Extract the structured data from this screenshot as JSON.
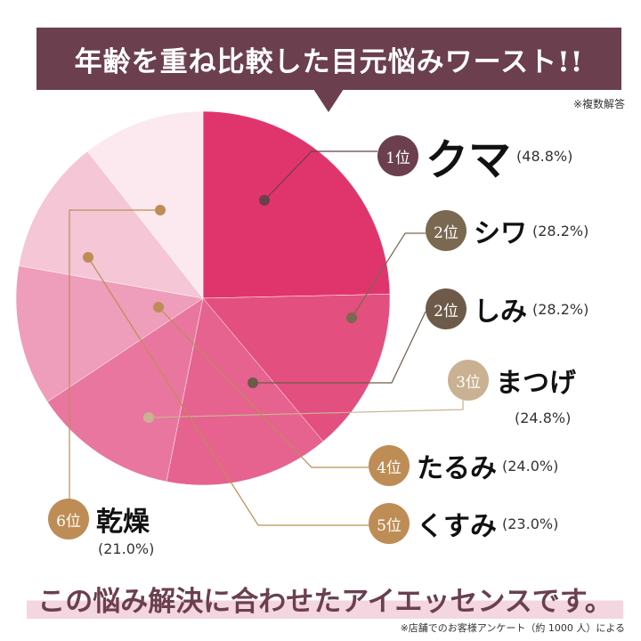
{
  "title": "年齢を重ね比較した目元悩みワースト!!",
  "note": "※複数解答",
  "chart_data": {
    "type": "pie",
    "title": "年齢を重ね比較した目元悩みワースト!!",
    "items": [
      {
        "rank": "1位",
        "name": "クマ",
        "value": 48.8,
        "label": "(48.8%)",
        "color": "#e0356c"
      },
      {
        "rank": "2位",
        "name": "シワ",
        "value": 28.2,
        "label": "(28.2%)",
        "color": "#e34f7f"
      },
      {
        "rank": "2位",
        "name": "しみ",
        "value": 28.2,
        "label": "(28.2%)",
        "color": "#e6628f"
      },
      {
        "rank": "3位",
        "name": "まつげ",
        "value": 24.8,
        "label": "(24.8%)",
        "color": "#e9769e"
      },
      {
        "rank": "4位",
        "name": "たるみ",
        "value": 24.0,
        "label": "(24.0%)",
        "color": "#ee9dba"
      },
      {
        "rank": "5位",
        "name": "くすみ",
        "value": 23.0,
        "label": "(23.0%)",
        "color": "#f4c6d6"
      },
      {
        "rank": "6位",
        "name": "乾燥",
        "value": 21.0,
        "label": "(21.0%)",
        "color": "#fbe9ef"
      }
    ]
  },
  "footer": "この悩み解決に合わせたアイエッセンスです。",
  "source": "※店舗でのお客様アンケート（約 1000 人）による"
}
